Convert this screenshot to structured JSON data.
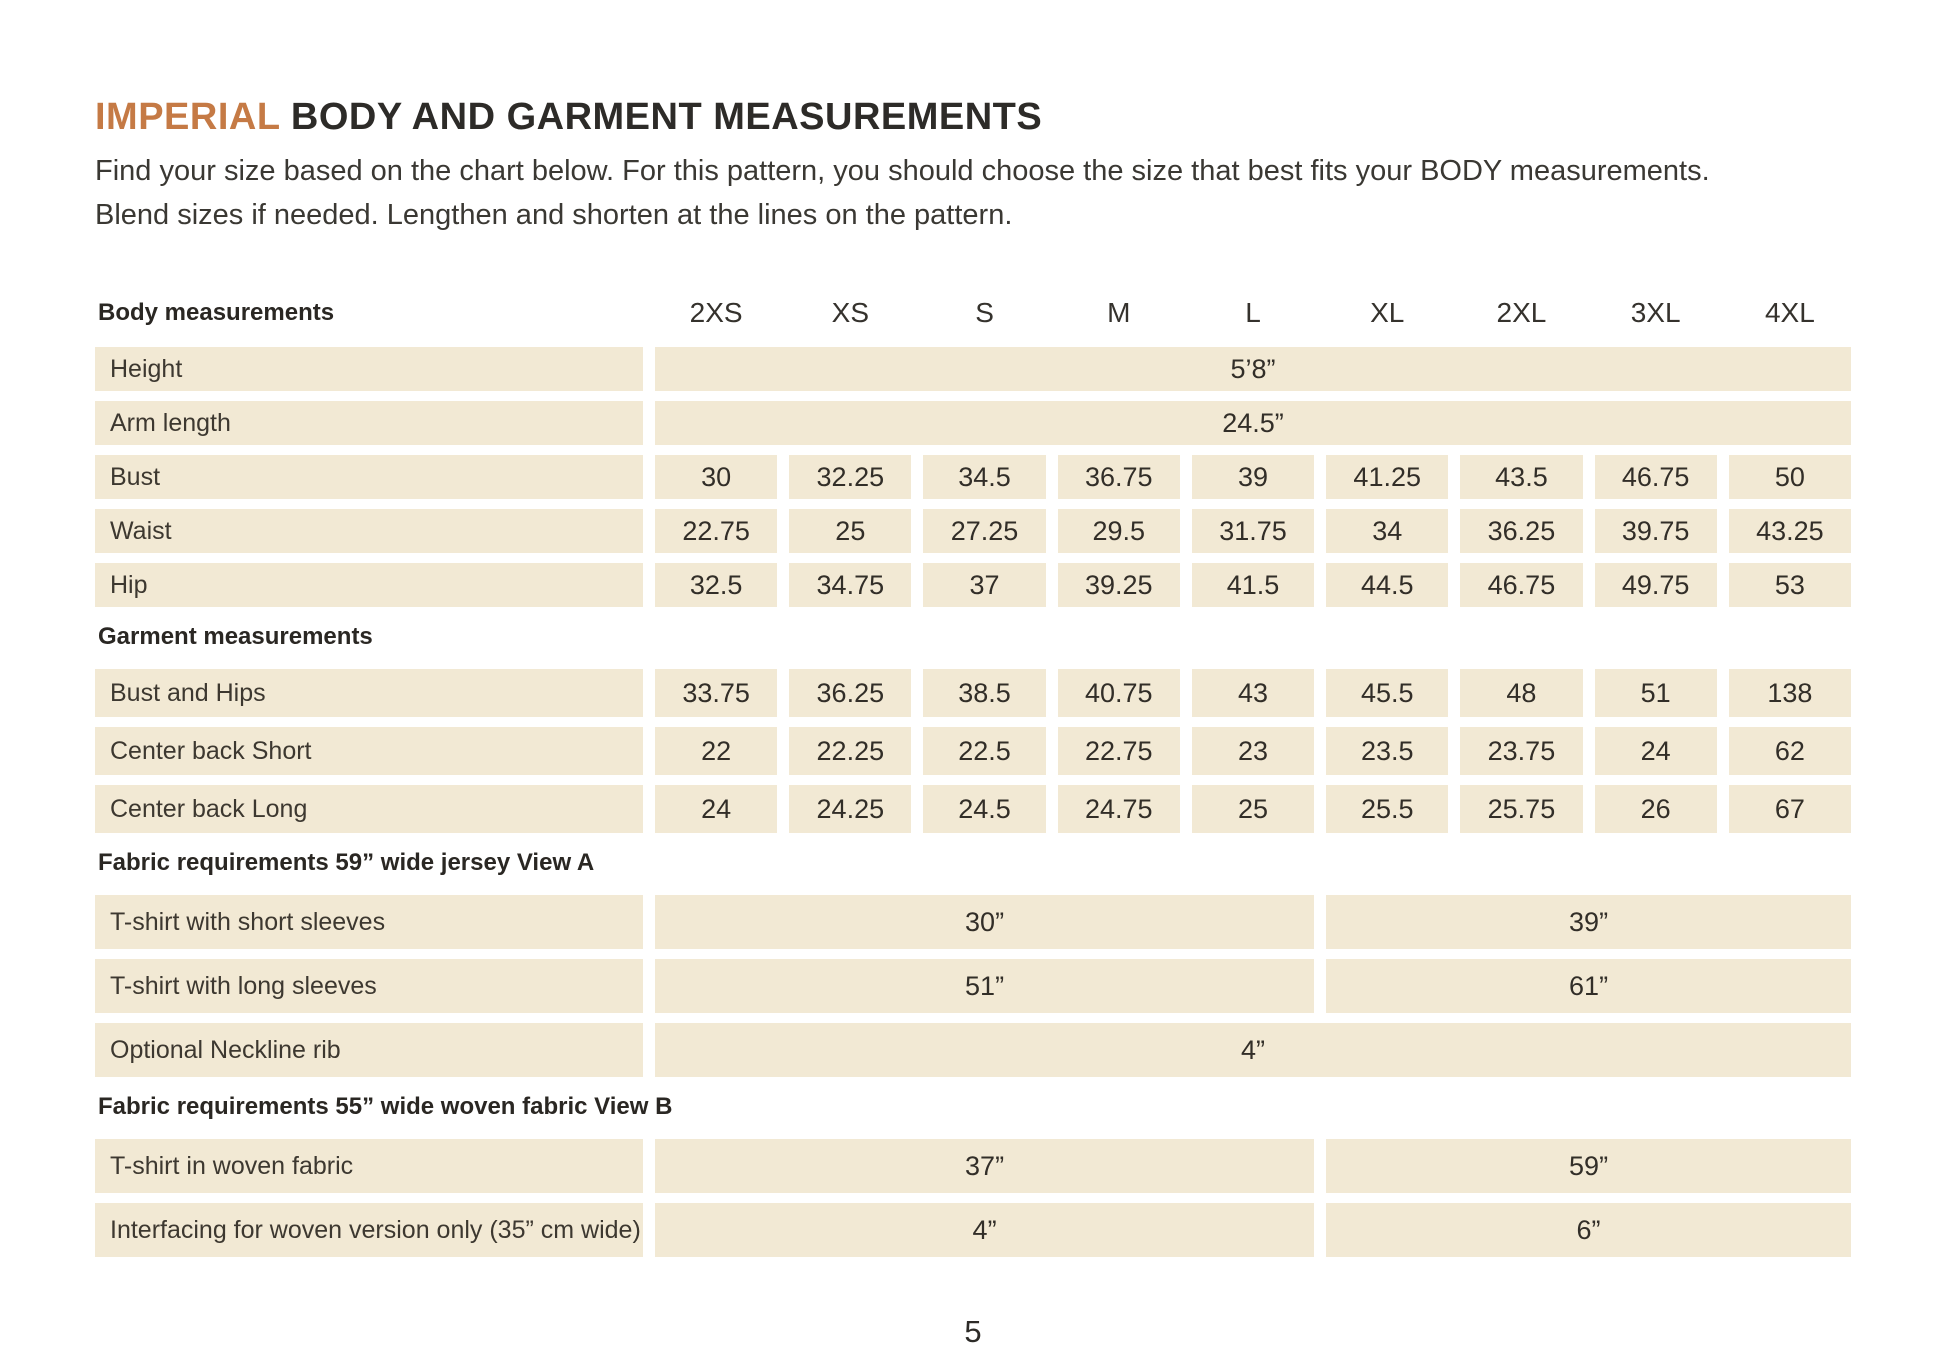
{
  "header": {
    "title_highlight": "IMPERIAL",
    "title_rest": " BODY AND GARMENT MEASUREMENTS",
    "intro": "Find your size based on the chart below. For this pattern, you should choose the size that best fits your BODY measurements. Blend sizes if needed. Lengthen and shorten at the lines on the pattern."
  },
  "colors": {
    "accent": "#c57a45",
    "cell_bg": "#f2e9d4"
  },
  "table": {
    "sizes": [
      "2XS",
      "XS",
      "S",
      "M",
      "L",
      "XL",
      "2XL",
      "3XL",
      "4XL"
    ],
    "sections": [
      {
        "title": "Body measurements",
        "show_sizes": true,
        "rows": [
          {
            "label": "Height",
            "type": "merged",
            "value": "5’8”"
          },
          {
            "label": "Arm length",
            "type": "merged",
            "value": "24.5”"
          },
          {
            "label": "Bust",
            "type": "per-size",
            "values": [
              "30",
              "32.25",
              "34.5",
              "36.75",
              "39",
              "41.25",
              "43.5",
              "46.75",
              "50"
            ]
          },
          {
            "label": "Waist",
            "type": "per-size",
            "values": [
              "22.75",
              "25",
              "27.25",
              "29.5",
              "31.75",
              "34",
              "36.25",
              "39.75",
              "43.25"
            ]
          },
          {
            "label": "Hip",
            "type": "per-size",
            "values": [
              "32.5",
              "34.75",
              "37",
              "39.25",
              "41.5",
              "44.5",
              "46.75",
              "49.75",
              "53"
            ]
          }
        ]
      },
      {
        "title": "Garment measurements",
        "show_sizes": false,
        "rows": [
          {
            "label": "Bust and Hips",
            "type": "per-size",
            "garment": true,
            "values": [
              "33.75",
              "36.25",
              "38.5",
              "40.75",
              "43",
              "45.5",
              "48",
              "51",
              "138"
            ]
          },
          {
            "label": "Center back Short",
            "type": "per-size",
            "garment": true,
            "values": [
              "22",
              "22.25",
              "22.5",
              "22.75",
              "23",
              "23.5",
              "23.75",
              "24",
              "62"
            ]
          },
          {
            "label": "Center back Long",
            "type": "per-size",
            "garment": true,
            "values": [
              "24",
              "24.25",
              "24.5",
              "24.75",
              "25",
              "25.5",
              "25.75",
              "26",
              "67"
            ]
          }
        ]
      },
      {
        "title": "Fabric requirements 59” wide jersey View A",
        "show_sizes": false,
        "rows": [
          {
            "label": "T-shirt with short sleeves",
            "type": "split",
            "tall": true,
            "values": [
              "30”",
              "39”"
            ]
          },
          {
            "label": "T-shirt with long sleeves",
            "type": "split",
            "tall": true,
            "values": [
              "51”",
              "61”"
            ]
          },
          {
            "label": "Optional Neckline rib",
            "type": "merged",
            "tall": true,
            "value": "4”"
          }
        ]
      },
      {
        "title": "Fabric requirements 55”  wide woven fabric View B",
        "show_sizes": false,
        "rows": [
          {
            "label": "T-shirt in woven fabric",
            "type": "split",
            "tall": true,
            "values": [
              "37”",
              "59”"
            ]
          },
          {
            "label": "Interfacing for woven version only (35” cm wide)",
            "type": "split",
            "tall": true,
            "values": [
              "4”",
              "6”"
            ]
          }
        ]
      }
    ]
  },
  "footer": {
    "page_number": "5"
  }
}
